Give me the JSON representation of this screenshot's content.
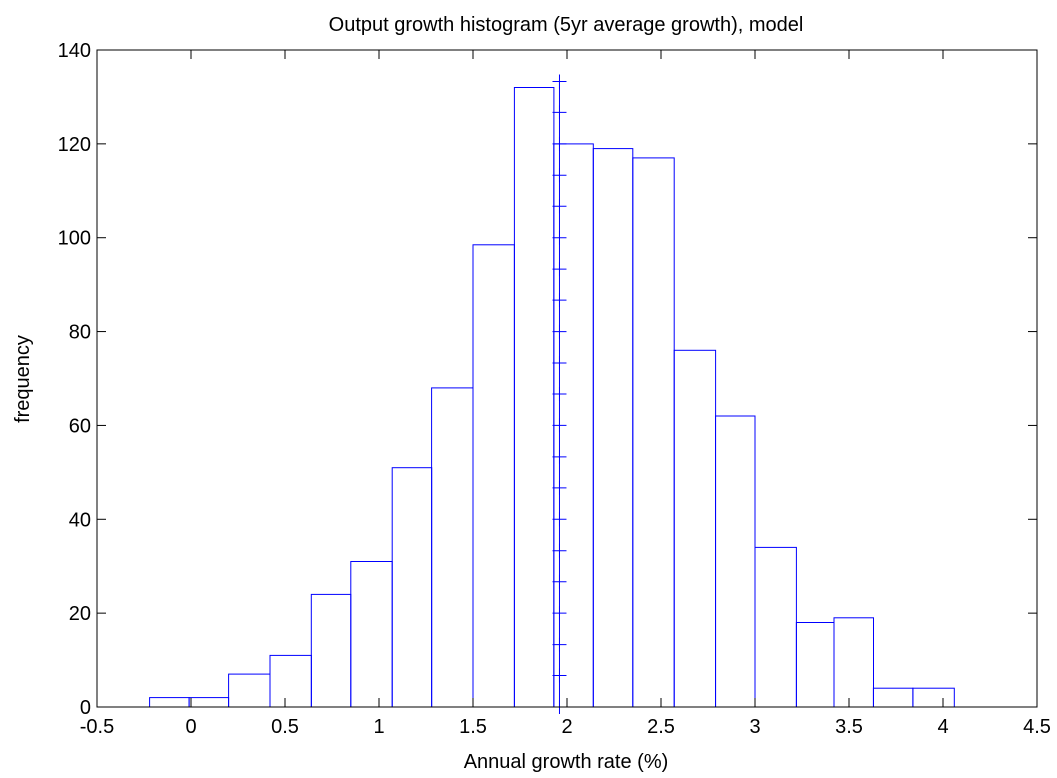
{
  "chart_data": {
    "type": "bar",
    "title": "Output growth histogram (5yr average growth), model",
    "xlabel": "Annual growth rate (%)",
    "ylabel": "frequency",
    "xlim": [
      -0.5,
      4.5
    ],
    "ylim": [
      0,
      140
    ],
    "xticks": [
      -0.5,
      0,
      0.5,
      1,
      1.5,
      2,
      2.5,
      3,
      3.5,
      4,
      4.5
    ],
    "xtick_labels": [
      "-0.5",
      "0",
      "0.5",
      "1",
      "1.5",
      "2",
      "2.5",
      "3",
      "3.5",
      "4",
      "4.5"
    ],
    "yticks": [
      0,
      20,
      40,
      60,
      80,
      100,
      120,
      140
    ],
    "ytick_labels": [
      "0",
      "20",
      "40",
      "60",
      "80",
      "100",
      "120",
      "140"
    ],
    "grid": false,
    "bar_color": "#0000ff",
    "bins": [
      {
        "x0": -0.22,
        "x1": -0.01,
        "value": 2
      },
      {
        "x0": -0.01,
        "x1": 0.2,
        "value": 2
      },
      {
        "x0": 0.2,
        "x1": 0.42,
        "value": 7
      },
      {
        "x0": 0.42,
        "x1": 0.64,
        "value": 11
      },
      {
        "x0": 0.64,
        "x1": 0.85,
        "value": 24
      },
      {
        "x0": 0.85,
        "x1": 1.07,
        "value": 31
      },
      {
        "x0": 1.07,
        "x1": 1.28,
        "value": 51
      },
      {
        "x0": 1.28,
        "x1": 1.5,
        "value": 68
      },
      {
        "x0": 1.5,
        "x1": 1.72,
        "value": 98.5
      },
      {
        "x0": 1.72,
        "x1": 1.93,
        "value": 132
      },
      {
        "x0": 1.93,
        "x1": 2.14,
        "value": 120
      },
      {
        "x0": 2.14,
        "x1": 2.35,
        "value": 119
      },
      {
        "x0": 2.35,
        "x1": 2.57,
        "value": 117
      },
      {
        "x0": 2.57,
        "x1": 2.79,
        "value": 76
      },
      {
        "x0": 2.79,
        "x1": 3.0,
        "value": 62
      },
      {
        "x0": 3.0,
        "x1": 3.22,
        "value": 34
      },
      {
        "x0": 3.22,
        "x1": 3.42,
        "value": 18
      },
      {
        "x0": 3.42,
        "x1": 3.63,
        "value": 19
      },
      {
        "x0": 3.63,
        "x1": 3.84,
        "value": 4
      },
      {
        "x0": 3.84,
        "x1": 4.06,
        "value": 4
      }
    ],
    "marker_line": {
      "x": 1.96,
      "marker": "+",
      "y_values": [
        0,
        6.7,
        13.3,
        20,
        26.7,
        33.3,
        40,
        46.7,
        53.3,
        60,
        66.7,
        73.3,
        80,
        86.7,
        93.3,
        100,
        106.7,
        113.3,
        120,
        126.7,
        133.3
      ]
    }
  }
}
